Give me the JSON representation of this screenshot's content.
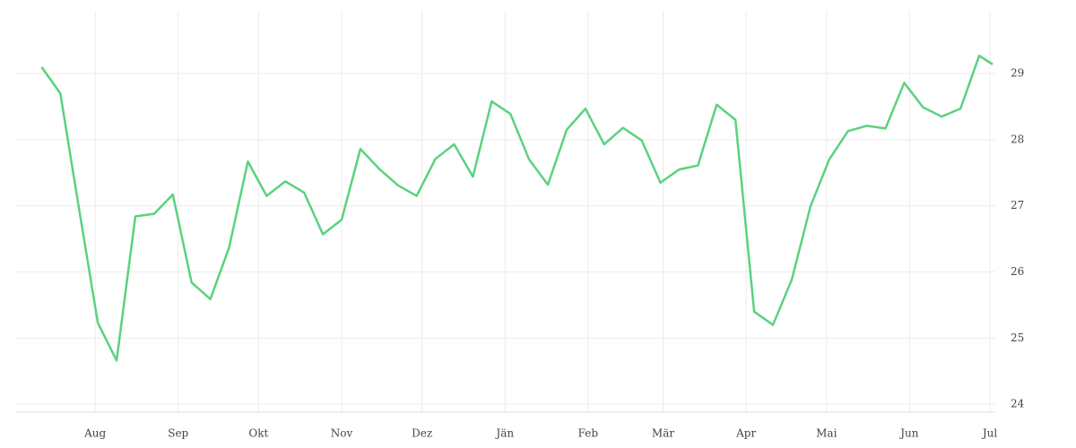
{
  "chart_data": {
    "type": "line",
    "x": [
      -20,
      -13,
      -6,
      1,
      8,
      15,
      22,
      29,
      36,
      43,
      50,
      57,
      64,
      71,
      78,
      85,
      92,
      99,
      106,
      113,
      120,
      127,
      134,
      141,
      148,
      155,
      162,
      169,
      176,
      183,
      190,
      197,
      204,
      211,
      218,
      225,
      232,
      239,
      246,
      253,
      260,
      267,
      274,
      281,
      288,
      295,
      302,
      309,
      316,
      323,
      330,
      335
    ],
    "series": [
      {
        "color": "#5ad27f",
        "values": [
          29.1,
          28.7,
          26.95,
          25.23,
          24.66,
          26.84,
          26.88,
          27.17,
          25.84,
          25.59,
          26.37,
          27.67,
          27.15,
          27.37,
          27.2,
          26.57,
          26.79,
          27.86,
          27.56,
          27.31,
          27.15,
          27.71,
          27.93,
          27.44,
          28.58,
          28.39,
          27.7,
          27.32,
          28.15,
          28.47,
          27.93,
          28.18,
          27.99,
          27.35,
          27.55,
          27.61,
          28.53,
          28.3,
          25.4,
          25.2,
          25.88,
          26.99,
          27.7,
          28.13,
          28.21,
          28.17,
          28.86,
          28.49,
          28.35,
          28.47,
          29.27,
          29.14
        ]
      }
    ],
    "xlim": [
      -29.5,
      336
    ],
    "xticks": [
      {
        "value": 0,
        "label": "Aug"
      },
      {
        "value": 31,
        "label": "Sep"
      },
      {
        "value": 61,
        "label": "Okt"
      },
      {
        "value": 92,
        "label": "Nov"
      },
      {
        "value": 122,
        "label": "Dez"
      },
      {
        "value": 153,
        "label": "Jän"
      },
      {
        "value": 184,
        "label": "Feb"
      },
      {
        "value": 212,
        "label": "Mär"
      },
      {
        "value": 243,
        "label": "Apr"
      },
      {
        "value": 273,
        "label": "Mai"
      },
      {
        "value": 304,
        "label": "Jun"
      },
      {
        "value": 334,
        "label": "Jul"
      }
    ],
    "ylim": [
      23.88,
      29.95
    ],
    "yticks": [
      24,
      25,
      26,
      27,
      28,
      29
    ],
    "grid": true
  }
}
